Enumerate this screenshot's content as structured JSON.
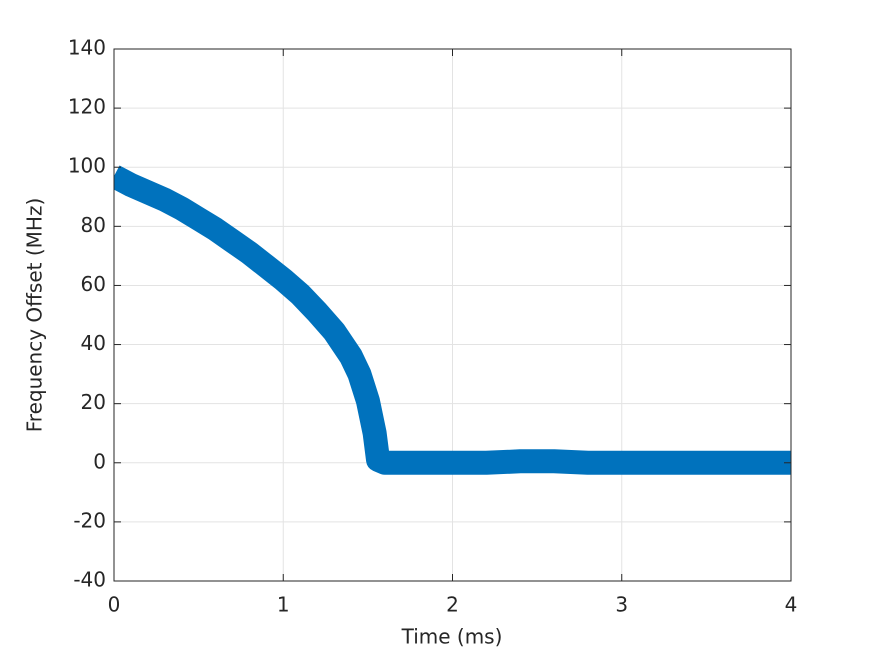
{
  "chart_data": {
    "type": "line",
    "x_label": "Time (ms)",
    "y_label": "Frequency Offset (MHz)",
    "x": [
      0,
      0.1,
      0.2,
      0.3,
      0.4,
      0.5,
      0.6,
      0.7,
      0.8,
      0.9,
      1.0,
      1.1,
      1.2,
      1.3,
      1.4,
      1.45,
      1.5,
      1.54,
      1.56,
      1.6,
      1.8,
      2.0,
      2.2,
      2.4,
      2.6,
      2.8,
      3.0,
      3.2,
      3.4,
      3.6,
      3.8,
      4.0
    ],
    "series": [
      {
        "color": "#0072bd",
        "values": [
          97,
          94,
          91.5,
          89,
          86,
          82.5,
          79,
          75,
          71,
          66.5,
          62,
          57,
          51,
          44.5,
          36,
          30,
          21,
          10,
          1,
          0,
          0,
          0,
          0,
          0.5,
          0.5,
          0,
          0,
          0,
          0,
          0,
          0,
          0
        ]
      }
    ],
    "xlim": [
      0,
      4
    ],
    "xticks": [
      0,
      1,
      2,
      3,
      4
    ],
    "ylim": [
      -40,
      140
    ],
    "yticks": [
      -40,
      -20,
      0,
      20,
      40,
      60,
      80,
      100,
      120,
      140
    ],
    "grid": true
  }
}
